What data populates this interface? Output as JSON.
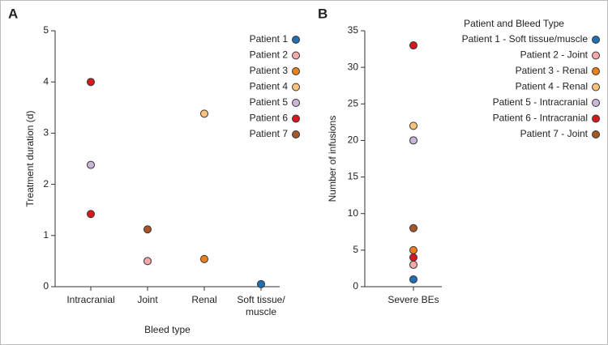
{
  "chart_data": [
    {
      "type": "scatter",
      "panel": "A",
      "ylabel": "Treatment duration (d)",
      "xlabel": "Bleed type",
      "categories": [
        "Intracranial",
        "Joint",
        "Renal",
        "Soft tissue/ muscle"
      ],
      "ylim": [
        0,
        5
      ],
      "yticks": [
        0,
        1,
        2,
        3,
        4,
        5
      ],
      "series": [
        {
          "name": "Patient 1",
          "color": "#1f6fb4",
          "x": [
            "Soft tissue/ muscle"
          ],
          "values": [
            0.05
          ]
        },
        {
          "name": "Patient 2",
          "color": "#f6a9a6",
          "x": [
            "Joint"
          ],
          "values": [
            0.5
          ]
        },
        {
          "name": "Patient 3",
          "color": "#ea7f1c",
          "x": [
            "Renal"
          ],
          "values": [
            0.54
          ]
        },
        {
          "name": "Patient 4",
          "color": "#f8c47c",
          "x": [
            "Renal"
          ],
          "values": [
            3.38
          ]
        },
        {
          "name": "Patient 5",
          "color": "#cbb5da",
          "x": [
            "Intracranial"
          ],
          "values": [
            2.38
          ]
        },
        {
          "name": "Patient 6",
          "color": "#d7191c",
          "x": [
            "Intracranial",
            "Intracranial"
          ],
          "values": [
            4.0,
            1.42
          ]
        },
        {
          "name": "Patient 7",
          "color": "#a65628",
          "x": [
            "Joint"
          ],
          "values": [
            1.12
          ]
        }
      ]
    },
    {
      "type": "scatter",
      "panel": "B",
      "ylabel": "Number of infusions",
      "legend_title": "Patient and Bleed Type",
      "categories": [
        "Severe BEs"
      ],
      "ylim": [
        0,
        35
      ],
      "yticks": [
        0,
        5,
        10,
        15,
        20,
        25,
        30,
        35
      ],
      "series": [
        {
          "name": "Patient 1 - Soft tissue/muscle",
          "color": "#1f6fb4",
          "x": [
            "Severe BEs"
          ],
          "values": [
            1
          ]
        },
        {
          "name": "Patient 2 - Joint",
          "color": "#f6a9a6",
          "x": [
            "Severe BEs"
          ],
          "values": [
            3
          ]
        },
        {
          "name": "Patient 3 - Renal",
          "color": "#ea7f1c",
          "x": [
            "Severe BEs"
          ],
          "values": [
            5
          ]
        },
        {
          "name": "Patient 4 - Renal",
          "color": "#f8c47c",
          "x": [
            "Severe BEs"
          ],
          "values": [
            22
          ]
        },
        {
          "name": "Patient 5 - Intracranial",
          "color": "#cbb5da",
          "x": [
            "Severe BEs"
          ],
          "values": [
            20
          ]
        },
        {
          "name": "Patient 6 - Intracranial",
          "color": "#d7191c",
          "x": [
            "Severe BEs",
            "Severe BEs"
          ],
          "values": [
            33,
            4
          ]
        },
        {
          "name": "Patient 7 - Joint",
          "color": "#a65628",
          "x": [
            "Severe BEs"
          ],
          "values": [
            8
          ]
        }
      ]
    }
  ]
}
